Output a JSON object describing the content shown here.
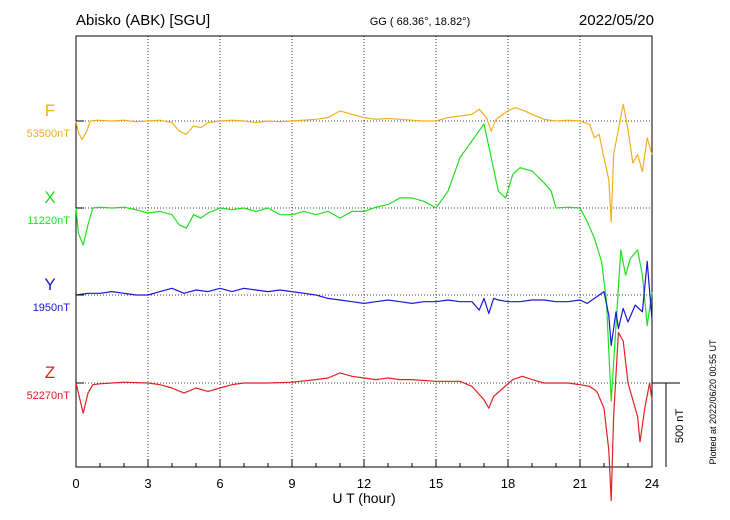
{
  "header": {
    "station": "Abisko (ABK)  [SGU]",
    "coords": "GG ( 68.36°,  18.82°)",
    "date": "2022/05/20"
  },
  "side_note": "Plotted at 2022/06/20 00:55 UT",
  "chart_data": {
    "type": "line",
    "xlabel": "U T (hour)",
    "xlim": [
      0,
      24
    ],
    "xticks": [
      0,
      3,
      6,
      9,
      12,
      15,
      18,
      21,
      24
    ],
    "xtick_labels": [
      "0",
      "3",
      "6",
      "9",
      "12",
      "15",
      "18",
      "21",
      "24"
    ],
    "grid": true,
    "scale_bar": {
      "label": "500 nT",
      "value_nT": 500
    },
    "series": [
      {
        "name": "F",
        "baseline_label": "53500nT",
        "baseline_nT": 53500,
        "color": "#f0b020",
        "points": [
          [
            0,
            0
          ],
          [
            0.1,
            -70
          ],
          [
            0.25,
            -110
          ],
          [
            0.45,
            -60
          ],
          [
            0.6,
            0
          ],
          [
            0.9,
            5
          ],
          [
            1.5,
            0
          ],
          [
            2,
            5
          ],
          [
            2.5,
            -5
          ],
          [
            3,
            0
          ],
          [
            3.5,
            5
          ],
          [
            4,
            -10
          ],
          [
            4.3,
            -60
          ],
          [
            4.6,
            -80
          ],
          [
            4.9,
            -30
          ],
          [
            5.2,
            -40
          ],
          [
            5.5,
            -10
          ],
          [
            6,
            0
          ],
          [
            6.5,
            5
          ],
          [
            7,
            0
          ],
          [
            7.5,
            -10
          ],
          [
            8,
            0
          ],
          [
            8.5,
            -5
          ],
          [
            9,
            0
          ],
          [
            10,
            10
          ],
          [
            10.5,
            20
          ],
          [
            11,
            60
          ],
          [
            11.5,
            40
          ],
          [
            12,
            20
          ],
          [
            12.5,
            10
          ],
          [
            13,
            15
          ],
          [
            13.5,
            10
          ],
          [
            14,
            5
          ],
          [
            14.5,
            0
          ],
          [
            15,
            0
          ],
          [
            15.5,
            20
          ],
          [
            16,
            30
          ],
          [
            16.5,
            40
          ],
          [
            16.8,
            70
          ],
          [
            17.1,
            20
          ],
          [
            17.3,
            -60
          ],
          [
            17.5,
            10
          ],
          [
            18,
            60
          ],
          [
            18.3,
            80
          ],
          [
            18.7,
            60
          ],
          [
            19,
            40
          ],
          [
            19.5,
            10
          ],
          [
            20,
            0
          ],
          [
            20.5,
            5
          ],
          [
            21,
            0
          ],
          [
            21.4,
            -20
          ],
          [
            21.6,
            -100
          ],
          [
            21.8,
            -80
          ],
          [
            22,
            -220
          ],
          [
            22.2,
            -350
          ],
          [
            22.3,
            -600
          ],
          [
            22.4,
            -200
          ],
          [
            22.6,
            -50
          ],
          [
            22.8,
            100
          ],
          [
            23,
            -50
          ],
          [
            23.2,
            -250
          ],
          [
            23.4,
            -200
          ],
          [
            23.6,
            -300
          ],
          [
            23.8,
            -100
          ],
          [
            24,
            -200
          ]
        ]
      },
      {
        "name": "X",
        "baseline_label": "11220nT",
        "baseline_nT": 11220,
        "color": "#22dd22",
        "points": [
          [
            0,
            0
          ],
          [
            0.1,
            -150
          ],
          [
            0.3,
            -220
          ],
          [
            0.5,
            -100
          ],
          [
            0.7,
            0
          ],
          [
            1,
            5
          ],
          [
            1.5,
            0
          ],
          [
            2,
            5
          ],
          [
            2.5,
            -10
          ],
          [
            3,
            -30
          ],
          [
            3.5,
            -20
          ],
          [
            4,
            -40
          ],
          [
            4.3,
            -100
          ],
          [
            4.6,
            -120
          ],
          [
            4.9,
            -40
          ],
          [
            5.2,
            -60
          ],
          [
            5.5,
            -30
          ],
          [
            6,
            0
          ],
          [
            6.5,
            -10
          ],
          [
            7,
            0
          ],
          [
            7.5,
            -20
          ],
          [
            8,
            0
          ],
          [
            8.5,
            -40
          ],
          [
            9,
            -40
          ],
          [
            9.5,
            -20
          ],
          [
            10,
            -40
          ],
          [
            10.5,
            -20
          ],
          [
            11,
            -60
          ],
          [
            11.5,
            -20
          ],
          [
            12,
            -20
          ],
          [
            12.5,
            5
          ],
          [
            13,
            20
          ],
          [
            13.5,
            60
          ],
          [
            14,
            60
          ],
          [
            14.5,
            40
          ],
          [
            15,
            0
          ],
          [
            15.5,
            100
          ],
          [
            16,
            300
          ],
          [
            16.5,
            400
          ],
          [
            17,
            500
          ],
          [
            17.3,
            300
          ],
          [
            17.6,
            100
          ],
          [
            17.9,
            60
          ],
          [
            18.2,
            200
          ],
          [
            18.5,
            240
          ],
          [
            19,
            220
          ],
          [
            19.5,
            150
          ],
          [
            19.8,
            100
          ],
          [
            20,
            0
          ],
          [
            20.5,
            5
          ],
          [
            21,
            0
          ],
          [
            21.3,
            -80
          ],
          [
            21.6,
            -180
          ],
          [
            21.9,
            -320
          ],
          [
            22.1,
            -550
          ],
          [
            22.3,
            -1150
          ],
          [
            22.5,
            -700
          ],
          [
            22.7,
            -250
          ],
          [
            22.9,
            -400
          ],
          [
            23.1,
            -300
          ],
          [
            23.4,
            -250
          ],
          [
            23.6,
            -400
          ],
          [
            23.8,
            -700
          ],
          [
            24,
            -500
          ]
        ]
      },
      {
        "name": "Y",
        "baseline_label": "1950nT",
        "baseline_nT": 1950,
        "color": "#1a1ad0",
        "points": [
          [
            0,
            0
          ],
          [
            0.5,
            10
          ],
          [
            1,
            10
          ],
          [
            1.5,
            20
          ],
          [
            2,
            10
          ],
          [
            2.5,
            0
          ],
          [
            3,
            0
          ],
          [
            3.5,
            20
          ],
          [
            4,
            40
          ],
          [
            4.5,
            10
          ],
          [
            5,
            30
          ],
          [
            5.5,
            20
          ],
          [
            6,
            40
          ],
          [
            6.5,
            20
          ],
          [
            7,
            40
          ],
          [
            7.5,
            30
          ],
          [
            8,
            20
          ],
          [
            8.5,
            30
          ],
          [
            9,
            20
          ],
          [
            9.5,
            10
          ],
          [
            10,
            0
          ],
          [
            10.5,
            -20
          ],
          [
            11,
            -30
          ],
          [
            11.5,
            -40
          ],
          [
            12,
            -50
          ],
          [
            12.5,
            -40
          ],
          [
            13,
            -30
          ],
          [
            13.5,
            -40
          ],
          [
            14,
            -50
          ],
          [
            14.5,
            -40
          ],
          [
            15,
            -40
          ],
          [
            15.5,
            -30
          ],
          [
            16,
            -40
          ],
          [
            16.5,
            -40
          ],
          [
            16.8,
            -90
          ],
          [
            17,
            -20
          ],
          [
            17.2,
            -110
          ],
          [
            17.4,
            -20
          ],
          [
            17.6,
            -30
          ],
          [
            18,
            -40
          ],
          [
            18.5,
            -40
          ],
          [
            19,
            -30
          ],
          [
            19.5,
            -30
          ],
          [
            20,
            -40
          ],
          [
            20.5,
            -40
          ],
          [
            21,
            -30
          ],
          [
            21.3,
            -50
          ],
          [
            21.6,
            -20
          ],
          [
            22,
            20
          ],
          [
            22.2,
            -120
          ],
          [
            22.3,
            -300
          ],
          [
            22.5,
            -100
          ],
          [
            22.6,
            -200
          ],
          [
            22.8,
            -80
          ],
          [
            23,
            -160
          ],
          [
            23.3,
            -60
          ],
          [
            23.6,
            -100
          ],
          [
            23.8,
            200
          ],
          [
            24,
            -150
          ]
        ]
      },
      {
        "name": "Z",
        "baseline_label": "52270nT",
        "baseline_nT": 52270,
        "color": "#dd2222",
        "points": [
          [
            0,
            0
          ],
          [
            0.1,
            -60
          ],
          [
            0.3,
            -180
          ],
          [
            0.5,
            -60
          ],
          [
            0.7,
            -10
          ],
          [
            1,
            -5
          ],
          [
            1.5,
            0
          ],
          [
            2,
            5
          ],
          [
            3,
            0
          ],
          [
            3.5,
            -10
          ],
          [
            4,
            -30
          ],
          [
            4.5,
            -60
          ],
          [
            5,
            -30
          ],
          [
            5.5,
            -50
          ],
          [
            6,
            -30
          ],
          [
            6.5,
            -10
          ],
          [
            7,
            0
          ],
          [
            8,
            0
          ],
          [
            9,
            5
          ],
          [
            10,
            20
          ],
          [
            10.5,
            30
          ],
          [
            11,
            60
          ],
          [
            11.5,
            40
          ],
          [
            12,
            30
          ],
          [
            12.5,
            20
          ],
          [
            13,
            30
          ],
          [
            13.5,
            20
          ],
          [
            14,
            20
          ],
          [
            15,
            10
          ],
          [
            16,
            10
          ],
          [
            16.5,
            -20
          ],
          [
            17,
            -100
          ],
          [
            17.2,
            -150
          ],
          [
            17.4,
            -80
          ],
          [
            17.8,
            -30
          ],
          [
            18.2,
            20
          ],
          [
            18.6,
            40
          ],
          [
            19,
            20
          ],
          [
            19.5,
            0
          ],
          [
            20,
            0
          ],
          [
            20.5,
            0
          ],
          [
            21,
            -10
          ],
          [
            21.4,
            -20
          ],
          [
            21.7,
            -50
          ],
          [
            22,
            -150
          ],
          [
            22.2,
            -400
          ],
          [
            22.3,
            -700
          ],
          [
            22.4,
            -200
          ],
          [
            22.6,
            300
          ],
          [
            22.8,
            250
          ],
          [
            23,
            0
          ],
          [
            23.2,
            -100
          ],
          [
            23.4,
            -200
          ],
          [
            23.5,
            -350
          ],
          [
            23.7,
            -150
          ],
          [
            23.9,
            0
          ],
          [
            24,
            -100
          ]
        ]
      }
    ]
  }
}
